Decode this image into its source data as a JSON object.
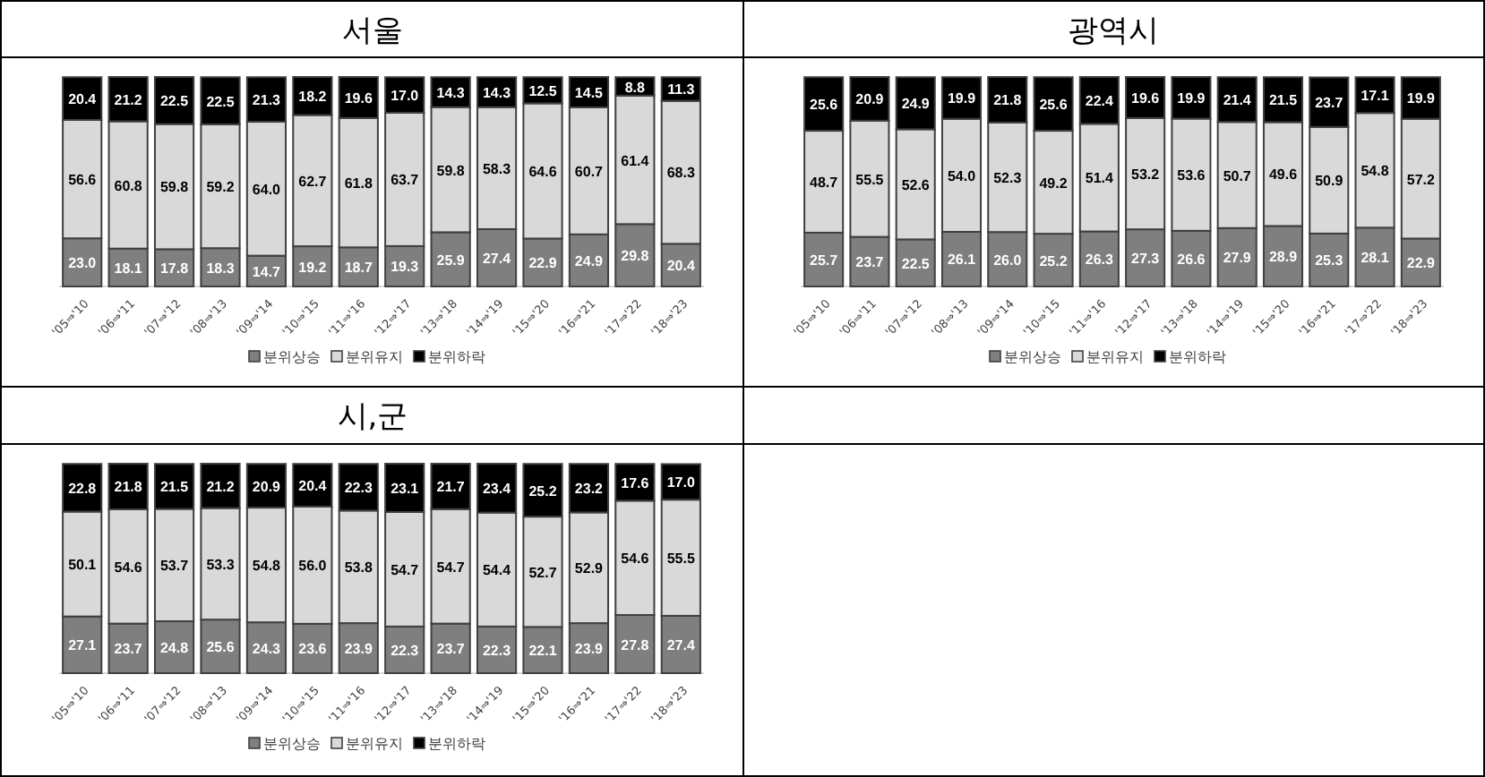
{
  "chart_data": [
    {
      "type": "bar",
      "title": "서울",
      "stacked": true,
      "legend": "bottom",
      "categories": [
        "'05⇒'10",
        "'06⇒'11",
        "'07⇒'12",
        "'08⇒'13",
        "'09⇒'14",
        "'10⇒'15",
        "'11⇒'16",
        "'12⇒'17",
        "'13⇒'18",
        "'14⇒'19",
        "'15⇒'20",
        "'16⇒'21",
        "'17⇒'22",
        "'18⇒'23"
      ],
      "series": [
        {
          "name": "분위상승",
          "color": "#7f7f7f",
          "values": [
            23.0,
            18.1,
            17.8,
            18.3,
            14.7,
            19.2,
            18.7,
            19.3,
            25.9,
            27.4,
            22.9,
            24.9,
            29.8,
            20.4
          ],
          "value_labels": [
            "23.0",
            "18.1",
            "17.8",
            "18.3",
            "14.7",
            "19.2",
            "18.7",
            "19.3",
            "25.9",
            "27.4",
            "22.9",
            "24.9",
            "29.8",
            "20.4"
          ]
        },
        {
          "name": "분위유지",
          "color": "#d9d9d9",
          "values": [
            56.6,
            60.8,
            59.8,
            59.2,
            64.0,
            62.7,
            61.8,
            63.7,
            59.8,
            58.3,
            64.6,
            60.7,
            61.4,
            68.3
          ],
          "value_labels": [
            "56.6",
            "60.8",
            "59.8",
            "59.2",
            "64.0",
            "62.7",
            "61.8",
            "63.7",
            "59.8",
            "58.3",
            "64.6",
            "60.7",
            "61.4",
            "68.3"
          ]
        },
        {
          "name": "분위하락",
          "color": "#000000",
          "values": [
            20.4,
            21.2,
            22.5,
            22.5,
            21.3,
            18.2,
            19.6,
            17.0,
            14.3,
            14.3,
            12.5,
            14.5,
            8.8,
            11.3
          ],
          "value_labels": [
            "20.4",
            "21.2",
            "22.5",
            "22.5",
            "21.3",
            "18.2",
            "19.6",
            "17.0",
            "14.3",
            "14.3",
            "12.5",
            "14.5",
            "8.8",
            "11.3"
          ]
        }
      ]
    },
    {
      "type": "bar",
      "title": "광역시",
      "stacked": true,
      "legend": "bottom",
      "categories": [
        "'05⇒'10",
        "'06⇒'11",
        "'07⇒'12",
        "'08⇒'13",
        "'09⇒'14",
        "'10⇒'15",
        "'11⇒'16",
        "'12⇒'17",
        "'13⇒'18",
        "'14⇒'19",
        "'15⇒'20",
        "'16⇒'21",
        "'17⇒'22",
        "'18⇒'23"
      ],
      "series": [
        {
          "name": "분위상승",
          "color": "#7f7f7f",
          "values": [
            25.7,
            23.7,
            22.5,
            26.1,
            26.0,
            25.2,
            26.3,
            27.3,
            26.6,
            27.9,
            28.9,
            25.3,
            28.1,
            22.9
          ],
          "value_labels": [
            "25.7",
            "23.7",
            "22.5",
            "26.1",
            "26.0",
            "25.2",
            "26.3",
            "27.3",
            "26.6",
            "27.9",
            "28.9",
            "25.3",
            "28.1",
            "22.9"
          ]
        },
        {
          "name": "분위유지",
          "color": "#d9d9d9",
          "values": [
            48.7,
            55.5,
            52.6,
            54.0,
            52.3,
            49.2,
            51.4,
            53.2,
            53.6,
            50.7,
            49.6,
            50.9,
            54.8,
            57.2
          ],
          "value_labels": [
            "48.7",
            "55.5",
            "52.6",
            "54.0",
            "52.3",
            "49.2",
            "51.4",
            "53.2",
            "53.6",
            "50.7",
            "49.6",
            "50.9",
            "54.8",
            "57.2"
          ]
        },
        {
          "name": "분위하락",
          "color": "#000000",
          "values": [
            25.6,
            20.9,
            24.9,
            19.9,
            21.8,
            25.6,
            22.4,
            19.6,
            19.9,
            21.4,
            21.5,
            23.7,
            17.1,
            19.9
          ],
          "value_labels": [
            "25.6",
            "20.9",
            "24.9",
            "19.9",
            "21.8",
            "25.6",
            "22.4",
            "19.6",
            "19.9",
            "21.4",
            "21.5",
            "23.7",
            "17.1",
            "19.9"
          ]
        }
      ]
    },
    {
      "type": "bar",
      "title": "시,군",
      "stacked": true,
      "legend": "bottom",
      "categories": [
        "'05⇒'10",
        "'06⇒'11",
        "'07⇒'12",
        "'08⇒'13",
        "'09⇒'14",
        "'10⇒'15",
        "'11⇒'16",
        "'12⇒'17",
        "'13⇒'18",
        "'14⇒'19",
        "'15⇒'20",
        "'16⇒'21",
        "'17⇒'22",
        "'18⇒'23"
      ],
      "series": [
        {
          "name": "분위상승",
          "color": "#7f7f7f",
          "values": [
            27.1,
            23.7,
            24.8,
            25.6,
            24.3,
            23.6,
            23.9,
            22.3,
            23.7,
            22.3,
            22.1,
            23.9,
            27.8,
            27.4
          ],
          "value_labels": [
            "27.1",
            "23.7",
            "24.8",
            "25.6",
            "24.3",
            "23.6",
            "23.9",
            "22.3",
            "23.7",
            "22.3",
            "22.1",
            "23.9",
            "27.8",
            "27.4"
          ]
        },
        {
          "name": "분위유지",
          "color": "#d9d9d9",
          "values": [
            50.1,
            54.6,
            53.7,
            53.3,
            54.8,
            56.0,
            53.8,
            54.7,
            54.7,
            54.4,
            52.7,
            52.9,
            54.6,
            55.5
          ],
          "value_labels": [
            "50.1",
            "54.6",
            "53.7",
            "53.3",
            "54.8",
            "56.0",
            "53.8",
            "54.7",
            "54.7",
            "54.4",
            "52.7",
            "52.9",
            "54.6",
            "55.5"
          ]
        },
        {
          "name": "분위하락",
          "color": "#000000",
          "values": [
            22.8,
            21.8,
            21.5,
            21.2,
            20.9,
            20.4,
            22.3,
            23.1,
            21.7,
            23.4,
            25.2,
            23.2,
            17.6,
            17.0
          ],
          "value_labels": [
            "22.8",
            "21.8",
            "21.5",
            "21.2",
            "20.9",
            "20.4",
            "22.3",
            "23.1",
            "21.7",
            "23.4",
            "25.2",
            "23.2",
            "17.6",
            "17.0"
          ]
        }
      ]
    }
  ]
}
